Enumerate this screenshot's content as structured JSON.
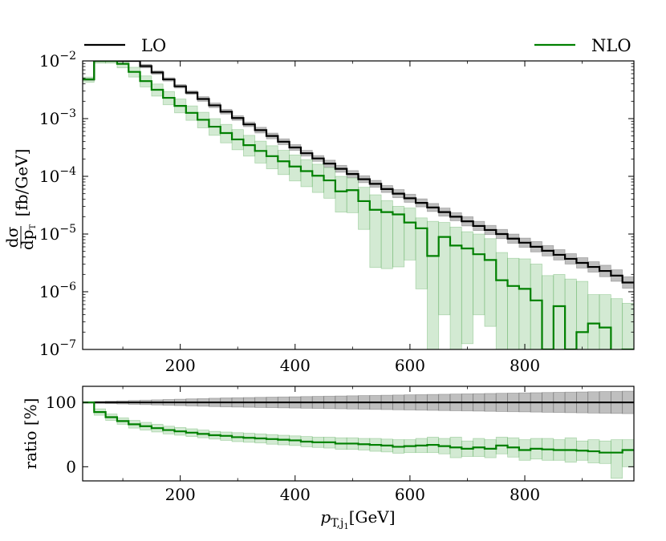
{
  "chart_data": [
    {
      "type": "line",
      "subtype": "step-histogram-with-uncertainty-bands",
      "panel": "main",
      "yscale": "log",
      "xlim": [
        30,
        990
      ],
      "ylim_exp": [
        -7,
        -2
      ],
      "xticks": [
        200,
        400,
        600,
        800
      ],
      "xtick_labels": [
        "200",
        "400",
        "600",
        "800"
      ],
      "ytick_exps": [
        -7,
        -6,
        -5,
        -4,
        -3,
        -2
      ],
      "ytick_base": "10",
      "ylabel": {
        "num": "dσ",
        "den": "dp",
        "den_sub": "T",
        "unit": "[fb/GeV]"
      },
      "legend": [
        {
          "name": "LO",
          "color": "#000000",
          "position": "top-left"
        },
        {
          "name": "NLO",
          "color": "#008000",
          "position": "top-right"
        }
      ],
      "bin_edges": [
        30,
        50,
        70,
        90,
        110,
        130,
        150,
        170,
        190,
        210,
        230,
        250,
        270,
        290,
        310,
        330,
        350,
        370,
        390,
        410,
        430,
        450,
        470,
        490,
        510,
        530,
        550,
        570,
        590,
        610,
        630,
        650,
        670,
        690,
        710,
        730,
        750,
        770,
        790,
        810,
        830,
        850,
        870,
        890,
        910,
        930,
        950,
        970,
        990
      ],
      "series": [
        {
          "name": "LO",
          "color": "#000000",
          "band_color": "#aaaaaa",
          "log10_values": [
            -2.32,
            -1.95,
            -1.92,
            -1.88,
            -1.97,
            -2.09,
            -2.2,
            -2.32,
            -2.44,
            -2.55,
            -2.66,
            -2.77,
            -2.88,
            -2.99,
            -3.1,
            -3.2,
            -3.3,
            -3.4,
            -3.5,
            -3.6,
            -3.69,
            -3.78,
            -3.87,
            -3.96,
            -4.05,
            -4.13,
            -4.22,
            -4.3,
            -4.38,
            -4.46,
            -4.54,
            -4.62,
            -4.7,
            -4.78,
            -4.86,
            -4.93,
            -5.0,
            -5.08,
            -5.15,
            -5.22,
            -5.29,
            -5.36,
            -5.43,
            -5.5,
            -5.57,
            -5.64,
            -5.72,
            -5.84
          ],
          "log10_band_halfwidth": [
            0.02,
            0.02,
            0.02,
            0.02,
            0.02,
            0.03,
            0.03,
            0.03,
            0.03,
            0.03,
            0.04,
            0.04,
            0.04,
            0.04,
            0.04,
            0.05,
            0.05,
            0.05,
            0.05,
            0.05,
            0.05,
            0.06,
            0.06,
            0.06,
            0.06,
            0.06,
            0.06,
            0.07,
            0.07,
            0.07,
            0.07,
            0.07,
            0.07,
            0.08,
            0.08,
            0.08,
            0.08,
            0.08,
            0.08,
            0.09,
            0.09,
            0.09,
            0.09,
            0.09,
            0.09,
            0.1,
            0.1,
            0.1
          ]
        },
        {
          "name": "NLO",
          "color": "#008000",
          "band_color": "#b6dcb6",
          "log10_values": [
            -2.32,
            -2.0,
            -1.98,
            -2.05,
            -2.19,
            -2.35,
            -2.5,
            -2.64,
            -2.78,
            -2.9,
            -3.02,
            -3.14,
            -3.25,
            -3.36,
            -3.46,
            -3.56,
            -3.65,
            -3.74,
            -3.83,
            -3.91,
            -3.99,
            -4.07,
            -4.26,
            -4.24,
            -4.43,
            -4.58,
            -4.62,
            -4.66,
            -4.8,
            -4.9,
            -5.38,
            -5.05,
            -5.2,
            -5.25,
            -5.35,
            -5.45,
            -5.8,
            -5.9,
            -5.95,
            -6.15,
            -7.0,
            -6.25,
            -7.0,
            -6.7,
            -6.55,
            -6.62,
            -7.1,
            -7.0
          ],
          "log10_band_lo": [
            -2.37,
            -2.04,
            -2.04,
            -2.12,
            -2.28,
            -2.45,
            -2.61,
            -2.76,
            -2.9,
            -3.03,
            -3.16,
            -3.29,
            -3.42,
            -3.54,
            -3.65,
            -3.77,
            -3.87,
            -3.97,
            -4.08,
            -4.18,
            -4.28,
            -4.38,
            -4.62,
            -4.63,
            -4.92,
            -5.58,
            -5.6,
            -5.57,
            -5.45,
            -5.95,
            -7.5,
            -6.4,
            -7.5,
            -6.9,
            -6.4,
            -6.6,
            -7.5,
            -7.5,
            -7.5,
            -7.5,
            -7.5,
            -7.5,
            -7.5,
            -7.5,
            -7.5,
            -7.5,
            -7.5,
            -7.5
          ],
          "log10_band_hi": [
            -2.28,
            -1.96,
            -1.93,
            -1.98,
            -2.11,
            -2.26,
            -2.4,
            -2.53,
            -2.66,
            -2.78,
            -2.89,
            -3.0,
            -3.1,
            -3.19,
            -3.29,
            -3.39,
            -3.47,
            -3.55,
            -3.63,
            -3.71,
            -3.79,
            -3.85,
            -4.0,
            -4.03,
            -4.19,
            -4.32,
            -4.42,
            -4.52,
            -4.55,
            -4.72,
            -4.78,
            -4.8,
            -4.88,
            -4.96,
            -5.0,
            -5.08,
            -5.32,
            -5.42,
            -5.43,
            -5.52,
            -5.72,
            -5.7,
            -5.78,
            -5.82,
            -6.05,
            -6.05,
            -6.12,
            -6.2
          ]
        }
      ]
    },
    {
      "type": "line",
      "subtype": "ratio-panel",
      "panel": "ratio",
      "xlim": [
        30,
        990
      ],
      "ylim": [
        -22,
        125
      ],
      "yticks": [
        0,
        100
      ],
      "ytick_labels": [
        "0",
        "100"
      ],
      "xticks": [
        200,
        400,
        600,
        800
      ],
      "xtick_labels": [
        "200",
        "400",
        "600",
        "800"
      ],
      "ylabel": "ratio [%]",
      "xlabel": {
        "var": "p",
        "sub": "T,j",
        "subsub": "1",
        "unit": "[GeV]"
      },
      "bin_edges": [
        30,
        50,
        70,
        90,
        110,
        130,
        150,
        170,
        190,
        210,
        230,
        250,
        270,
        290,
        310,
        330,
        350,
        370,
        390,
        410,
        430,
        450,
        470,
        490,
        510,
        530,
        550,
        570,
        590,
        610,
        630,
        650,
        670,
        690,
        710,
        730,
        750,
        770,
        790,
        810,
        830,
        850,
        870,
        890,
        910,
        930,
        950,
        970,
        990
      ],
      "series": [
        {
          "name": "LO",
          "color": "#000000",
          "band_color": "#aaaaaa",
          "values": [
            100,
            100,
            100,
            100,
            100,
            100,
            100,
            100,
            100,
            100,
            100,
            100,
            100,
            100,
            100,
            100,
            100,
            100,
            100,
            100,
            100,
            100,
            100,
            100,
            100,
            100,
            100,
            100,
            100,
            100,
            100,
            100,
            100,
            100,
            100,
            100,
            100,
            100,
            100,
            100,
            100,
            100,
            100,
            100,
            100,
            100,
            100,
            100
          ],
          "band_halfwidth": [
            1,
            1.5,
            2,
            2.5,
            3,
            3.5,
            4,
            4.5,
            5,
            5.5,
            6,
            6.5,
            7,
            7.3,
            7.6,
            7.9,
            8.2,
            8.5,
            8.8,
            9.1,
            9.4,
            9.7,
            10,
            10.3,
            10.6,
            10.9,
            11.2,
            11.5,
            11.8,
            12.1,
            12.4,
            12.7,
            13,
            13.3,
            13.6,
            13.9,
            14.2,
            14.5,
            14.8,
            15.1,
            15.4,
            15.7,
            16,
            16.3,
            16.6,
            16.9,
            17.2,
            17.5
          ]
        },
        {
          "name": "NLO",
          "color": "#008000",
          "band_color": "#b6dcb6",
          "values": [
            100,
            85,
            77,
            71,
            66,
            63,
            60,
            57,
            55,
            53,
            51,
            49,
            48,
            46,
            45,
            44,
            43,
            42,
            41,
            39,
            38,
            38,
            36,
            36,
            35,
            34,
            33,
            31,
            32,
            33,
            34,
            32,
            30,
            28,
            30,
            28,
            33,
            30,
            26,
            28,
            27,
            26,
            26,
            25,
            24,
            22,
            22,
            26
          ],
          "band_lo": [
            99,
            80,
            72,
            66,
            60,
            57,
            54,
            51,
            49,
            47,
            45,
            43,
            41,
            39,
            38,
            37,
            35,
            34,
            33,
            31,
            30,
            29,
            27,
            27,
            26,
            24,
            23,
            21,
            22,
            22,
            22,
            20,
            14,
            16,
            16,
            14,
            20,
            15,
            10,
            12,
            10,
            10,
            7,
            10,
            6,
            5,
            -18,
            0
          ],
          "band_hi": [
            101,
            90,
            82,
            76,
            72,
            69,
            66,
            63,
            61,
            59,
            57,
            55,
            54,
            53,
            52,
            51,
            50,
            49,
            48,
            47,
            46,
            46,
            45,
            45,
            44,
            44,
            43,
            42,
            42,
            44,
            46,
            44,
            46,
            40,
            44,
            42,
            46,
            45,
            42,
            44,
            44,
            42,
            45,
            40,
            42,
            40,
            42,
            42
          ]
        }
      ]
    }
  ]
}
